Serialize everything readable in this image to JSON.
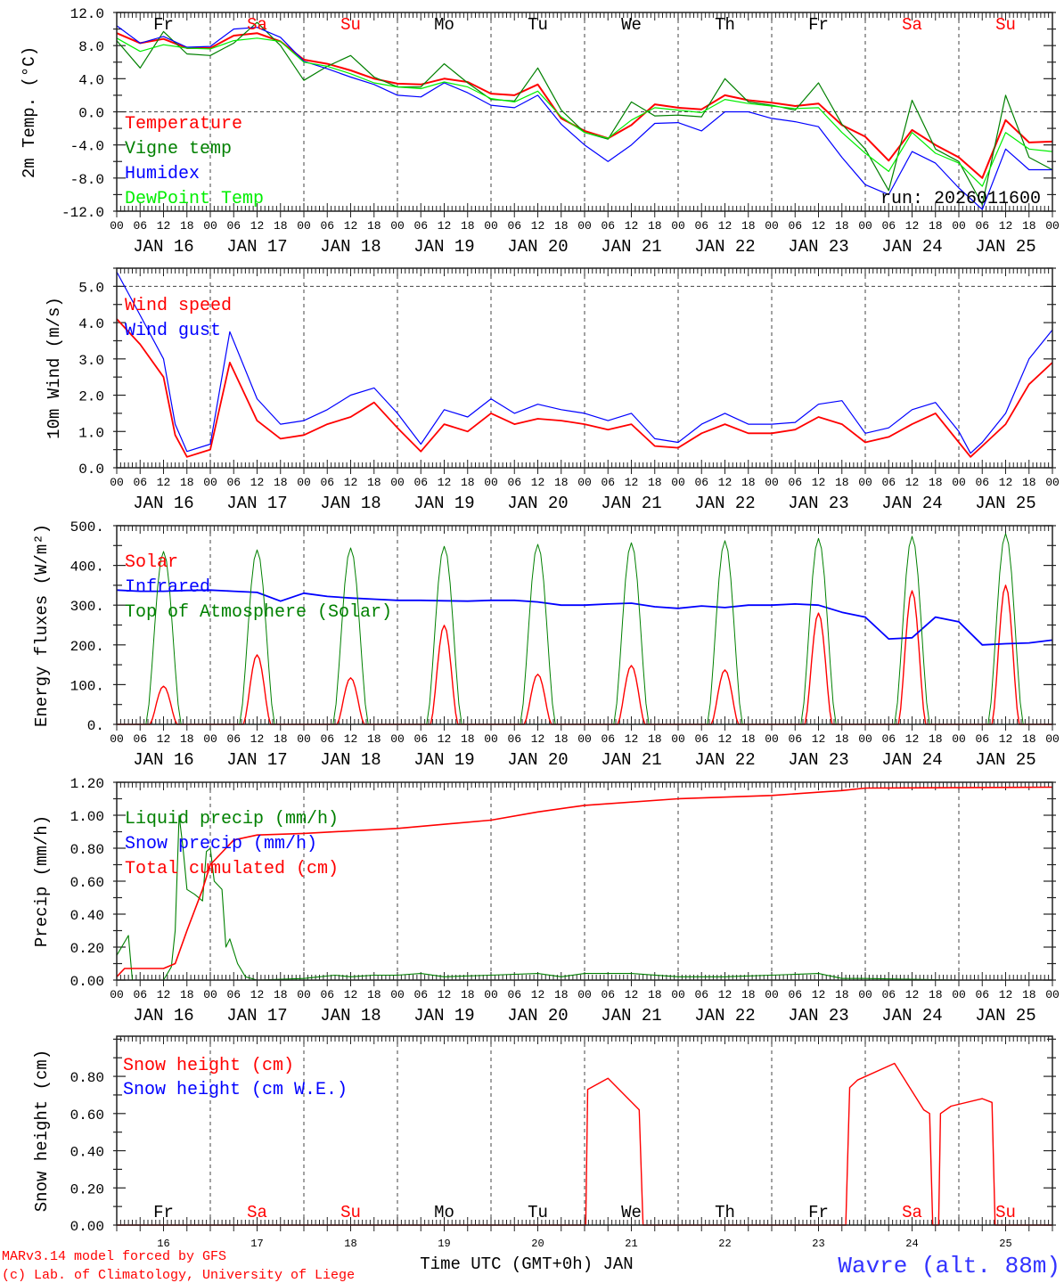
{
  "header": {
    "run_label": "run: 2026011600"
  },
  "axis": {
    "hour_labels": [
      "00",
      "06",
      "12",
      "18"
    ],
    "date_labels": [
      "JAN 16",
      "JAN 17",
      "JAN 18",
      "JAN 19",
      "JAN 20",
      "JAN 21",
      "JAN 22",
      "JAN 23",
      "JAN 24",
      "JAN 25"
    ],
    "day_numbers": [
      "16",
      "17",
      "18",
      "19",
      "20",
      "21",
      "22",
      "23",
      "24",
      "25"
    ],
    "weekdays": [
      {
        "label": "Fr",
        "weekend": false
      },
      {
        "label": "Sa",
        "weekend": true
      },
      {
        "label": "Su",
        "weekend": true
      },
      {
        "label": "Mo",
        "weekend": false
      },
      {
        "label": "Tu",
        "weekend": false
      },
      {
        "label": "We",
        "weekend": false
      },
      {
        "label": "Th",
        "weekend": false
      },
      {
        "label": "Fr",
        "weekend": false
      },
      {
        "label": "Sa",
        "weekend": true
      },
      {
        "label": "Su",
        "weekend": true
      }
    ],
    "xlabel": "Time UTC (GMT+0h) JAN"
  },
  "footer": {
    "model": "MARv3.14 model forced by GFS",
    "credit": "(c) Lab. of Climatology, University of Liege",
    "station": "Wavre (alt. 88m)"
  },
  "colors": {
    "weekday": "#000000",
    "weekend": "#ff0000",
    "footer": "#ff0000",
    "station": "#3333ff",
    "grid": "#444444"
  },
  "chart_data": [
    {
      "type": "line",
      "ylabel": "2m Temp. (°C)",
      "ylim": [
        -12,
        12
      ],
      "yticks": [
        -12,
        -8,
        -4,
        0,
        4,
        8,
        12
      ],
      "ytick_labels": [
        "-12.0",
        "-8.0",
        "-4.0",
        "0.0",
        "4.0",
        "8.0",
        "12.0"
      ],
      "reference_lines": [
        0
      ],
      "x": [
        0,
        6,
        12,
        18,
        24,
        30,
        36,
        42,
        48,
        54,
        60,
        66,
        72,
        78,
        84,
        90,
        96,
        102,
        108,
        114,
        120,
        126,
        132,
        138,
        144,
        150,
        156,
        162,
        168,
        174,
        180,
        186,
        192,
        198,
        204,
        210,
        216,
        222,
        228,
        234,
        240
      ],
      "series": [
        {
          "name": "Temperature",
          "color": "#ff0000",
          "width": 2,
          "values": [
            9.5,
            8.3,
            8.8,
            7.7,
            7.7,
            9.2,
            9.5,
            8.5,
            6.3,
            5.8,
            5.0,
            4.0,
            3.4,
            3.3,
            4.0,
            3.6,
            2.2,
            2.0,
            3.3,
            -0.8,
            -2.3,
            -3.2,
            -1.6,
            0.9,
            0.5,
            0.3,
            2.0,
            1.4,
            1.1,
            0.7,
            1.0,
            -1.6,
            -3.0,
            -5.9,
            -2.2,
            -4.0,
            -5.5,
            -8.0,
            -1.0,
            -3.7,
            -3.6
          ]
        },
        {
          "name": "Vigne temp",
          "color": "#008000",
          "width": 1.2,
          "values": [
            8.6,
            5.3,
            9.7,
            7.0,
            6.8,
            8.3,
            10.8,
            8.0,
            3.8,
            5.5,
            6.8,
            4.2,
            3.0,
            3.0,
            5.8,
            3.5,
            1.5,
            1.3,
            5.3,
            0.2,
            -2.5,
            -3.3,
            1.2,
            -0.5,
            -0.4,
            -0.6,
            4.0,
            1.2,
            0.8,
            0.2,
            3.5,
            -1.5,
            -4.5,
            -9.5,
            1.4,
            -4.5,
            -6.0,
            -11.2,
            2.0,
            -5.5,
            -7.0
          ]
        },
        {
          "name": "Humidex",
          "color": "#0000ff",
          "width": 1.2,
          "values": [
            10.4,
            8.3,
            9.1,
            7.8,
            7.9,
            10.0,
            10.2,
            9.0,
            6.1,
            5.2,
            4.2,
            3.3,
            2.0,
            1.8,
            3.5,
            2.3,
            0.8,
            0.5,
            2.0,
            -1.5,
            -4.0,
            -6.0,
            -4.0,
            -1.4,
            -1.3,
            -2.3,
            0.0,
            0.0,
            -0.8,
            -1.2,
            -1.8,
            -5.5,
            -8.8,
            -10.0,
            -4.8,
            -6.2,
            -9.2,
            -11.8,
            -4.5,
            -7.0,
            -7.0
          ]
        },
        {
          "name": "DewPoint Temp",
          "color": "#00ee00",
          "width": 1.2,
          "values": [
            8.9,
            7.3,
            8.1,
            7.7,
            7.6,
            8.6,
            8.9,
            8.5,
            6.0,
            5.5,
            4.6,
            3.5,
            3.0,
            2.8,
            3.6,
            3.0,
            1.6,
            1.2,
            2.5,
            -0.6,
            -2.5,
            -3.2,
            -1.0,
            0.5,
            0.2,
            -0.1,
            1.5,
            1.0,
            0.7,
            0.4,
            0.5,
            -2.5,
            -5.0,
            -7.2,
            -2.5,
            -5.0,
            -6.2,
            -9.0,
            -2.5,
            -4.5,
            -4.8
          ]
        }
      ]
    },
    {
      "type": "line",
      "ylabel": "10m Wind (m/s)",
      "ylim": [
        0,
        5.5
      ],
      "yticks": [
        0,
        1,
        2,
        3,
        4,
        5
      ],
      "ytick_labels": [
        "0.0",
        "1.0",
        "2.0",
        "3.0",
        "4.0",
        "5.0"
      ],
      "reference_lines": [
        5
      ],
      "x": [
        0,
        6,
        12,
        15,
        18,
        24,
        29,
        36,
        42,
        48,
        54,
        60,
        66,
        72,
        78,
        84,
        90,
        96,
        102,
        108,
        114,
        120,
        126,
        132,
        138,
        144,
        150,
        156,
        162,
        168,
        174,
        180,
        186,
        192,
        198,
        204,
        210,
        216,
        219,
        222,
        228,
        234,
        240
      ],
      "series": [
        {
          "name": "Wind speed",
          "color": "#ff0000",
          "width": 1.8,
          "values": [
            4.1,
            3.4,
            2.5,
            0.9,
            0.3,
            0.5,
            2.9,
            1.3,
            0.8,
            0.9,
            1.2,
            1.4,
            1.8,
            1.1,
            0.45,
            1.2,
            1.0,
            1.5,
            1.2,
            1.35,
            1.3,
            1.2,
            1.05,
            1.2,
            0.6,
            0.55,
            0.95,
            1.2,
            0.95,
            0.95,
            1.05,
            1.4,
            1.2,
            0.7,
            0.85,
            1.2,
            1.5,
            0.7,
            0.3,
            0.6,
            1.2,
            2.3,
            2.9
          ]
        },
        {
          "name": "Wind gust",
          "color": "#0000ff",
          "width": 1.2,
          "values": [
            5.4,
            4.2,
            3.0,
            1.2,
            0.45,
            0.65,
            3.75,
            1.9,
            1.2,
            1.3,
            1.6,
            2.0,
            2.2,
            1.5,
            0.65,
            1.6,
            1.4,
            1.9,
            1.5,
            1.75,
            1.6,
            1.5,
            1.3,
            1.5,
            0.8,
            0.7,
            1.2,
            1.5,
            1.2,
            1.2,
            1.25,
            1.75,
            1.85,
            0.95,
            1.1,
            1.6,
            1.8,
            1.0,
            0.4,
            0.7,
            1.5,
            3.0,
            3.8
          ]
        }
      ]
    },
    {
      "type": "line",
      "ylabel": "Energy fluxes (W/m²)",
      "ylim": [
        0,
        500
      ],
      "yticks": [
        0,
        100,
        200,
        300,
        400,
        500
      ],
      "ytick_labels": [
        "0.",
        "100.",
        "200.",
        "300.",
        "400.",
        "500."
      ],
      "reference_lines": [],
      "x": [
        0,
        6,
        12,
        18,
        24,
        30,
        36,
        42,
        48,
        54,
        60,
        66,
        72,
        78,
        84,
        90,
        96,
        102,
        108,
        114,
        120,
        126,
        132,
        138,
        144,
        150,
        156,
        162,
        168,
        174,
        180,
        186,
        192,
        198,
        204,
        210,
        216,
        222,
        228,
        234,
        240
      ],
      "series": [
        {
          "name": "Solar",
          "color": "#ff0000",
          "width": 1.4,
          "daylight_hours": [
            8.5,
            15.5
          ],
          "daily_peak": [
            96,
            175,
            117,
            249,
            126,
            148,
            137,
            280,
            336,
            350
          ]
        },
        {
          "name": "Infrared",
          "color": "#0000ff",
          "width": 1.8,
          "values": [
            338,
            335,
            335,
            337,
            338,
            335,
            332,
            310,
            330,
            322,
            318,
            315,
            312,
            312,
            311,
            310,
            312,
            312,
            308,
            300,
            300,
            303,
            305,
            296,
            292,
            298,
            294,
            300,
            300,
            303,
            300,
            282,
            270,
            215,
            218,
            270,
            258,
            200,
            203,
            205,
            212
          ]
        },
        {
          "name": "Top of Atmosphere (Solar)",
          "color": "#008000",
          "width": 1,
          "daylight_hours": [
            7.5,
            16.5
          ],
          "daily_peak": [
            435,
            439,
            444,
            448,
            453,
            457,
            462,
            468,
            473,
            480
          ]
        }
      ]
    },
    {
      "type": "line",
      "ylabel": "Precip (mm/h)",
      "ylim": [
        0,
        1.2
      ],
      "yticks": [
        0,
        0.2,
        0.4,
        0.6,
        0.8,
        1.0,
        1.2
      ],
      "ytick_labels": [
        "0.00",
        "0.20",
        "0.40",
        "0.60",
        "0.80",
        "1.00",
        "1.20"
      ],
      "reference_lines": [],
      "series": [
        {
          "name": "Liquid precip (mm/h)",
          "color": "#008000",
          "width": 1.1,
          "x": [
            0,
            3,
            4,
            12,
            14,
            15,
            16,
            17,
            18,
            20,
            22,
            23,
            24,
            25,
            27,
            28,
            29,
            31,
            33,
            36,
            48,
            56,
            60,
            66,
            72,
            78,
            84,
            96,
            108,
            114,
            120,
            132,
            144,
            156,
            168,
            180,
            186,
            192,
            216,
            240
          ],
          "values": [
            0.15,
            0.27,
            0,
            0,
            0.08,
            0.3,
            1.0,
            0.8,
            0.55,
            0.52,
            0.48,
            0.78,
            0.8,
            0.6,
            0.55,
            0.2,
            0.25,
            0.1,
            0.02,
            0,
            0.01,
            0.03,
            0.02,
            0.03,
            0.03,
            0.04,
            0.02,
            0.03,
            0.04,
            0.02,
            0.04,
            0.04,
            0.02,
            0.02,
            0.03,
            0.04,
            0.01,
            0.01,
            0,
            0
          ]
        },
        {
          "name": "Snow precip (mm/h)",
          "color": "#0000ff",
          "width": 1.1,
          "x": [
            0,
            240
          ],
          "values": [
            0,
            0
          ]
        },
        {
          "name": "Total cumulated (cm)",
          "color": "#ff0000",
          "width": 1.6,
          "x": [
            0,
            2,
            12,
            15,
            18,
            22,
            24,
            30,
            36,
            48,
            72,
            96,
            108,
            120,
            144,
            168,
            186,
            192,
            240
          ],
          "values": [
            0.02,
            0.07,
            0.07,
            0.1,
            0.3,
            0.55,
            0.7,
            0.85,
            0.88,
            0.89,
            0.92,
            0.97,
            1.02,
            1.06,
            1.1,
            1.12,
            1.15,
            1.165,
            1.17
          ]
        }
      ]
    },
    {
      "type": "line",
      "ylabel": "Snow height (cm)",
      "ylim": [
        0,
        1.016
      ],
      "yticks": [
        0,
        0.2,
        0.4,
        0.6,
        0.8
      ],
      "ytick_labels": [
        "0.00",
        "0.20",
        "0.40",
        "0.60",
        "0.80"
      ],
      "reference_lines": [],
      "series": [
        {
          "name": "Snow height (cm)",
          "color": "#ff0000",
          "width": 1.4,
          "x": [
            0,
            120.3,
            120.8,
            126,
            134,
            135,
            187,
            188,
            190,
            199.5,
            207,
            208.5,
            209.3,
            210.8,
            211.3,
            214,
            222,
            224.5,
            225.3,
            240
          ],
          "values": [
            0,
            0,
            0.73,
            0.79,
            0.62,
            0,
            0,
            0.74,
            0.78,
            0.87,
            0.62,
            0.6,
            0,
            0,
            0.6,
            0.64,
            0.68,
            0.66,
            0,
            0
          ]
        },
        {
          "name": "Snow height (cm W.E.)",
          "color": "#0000ff",
          "width": 1.1,
          "x": [
            0,
            240
          ],
          "values": [
            0,
            0
          ]
        }
      ]
    }
  ]
}
